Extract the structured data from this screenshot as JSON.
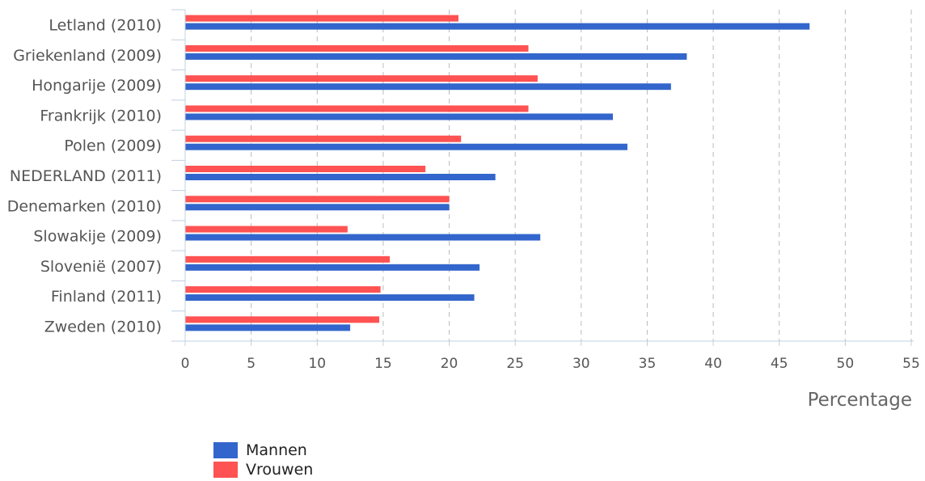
{
  "chart_data": {
    "type": "bar",
    "orientation": "horizontal",
    "categories": [
      "Letland (2010)",
      "Griekenland (2009)",
      "Hongarije (2009)",
      "Frankrijk (2010)",
      "Polen (2009)",
      "NEDERLAND (2011)",
      "Denemarken (2010)",
      "Slowakije (2009)",
      "Slovenië (2007)",
      "Finland (2011)",
      "Zweden (2010)"
    ],
    "series": [
      {
        "name": "Mannen",
        "color": "#3366cc",
        "values": [
          47.3,
          38.0,
          36.8,
          32.4,
          33.5,
          23.5,
          20.0,
          26.9,
          22.3,
          21.9,
          12.5
        ]
      },
      {
        "name": "Vrouwen",
        "color": "#ff5252",
        "values": [
          20.7,
          26.0,
          26.7,
          26.0,
          20.9,
          18.2,
          20.0,
          12.3,
          15.5,
          14.8,
          14.7
        ]
      }
    ],
    "xlabel": "Percentage",
    "ylabel": "",
    "xlim": [
      0,
      55
    ],
    "xticks": [
      0,
      5,
      10,
      15,
      20,
      25,
      30,
      35,
      40,
      45,
      50,
      55
    ],
    "grid": true,
    "legend_position": "bottom-left"
  }
}
